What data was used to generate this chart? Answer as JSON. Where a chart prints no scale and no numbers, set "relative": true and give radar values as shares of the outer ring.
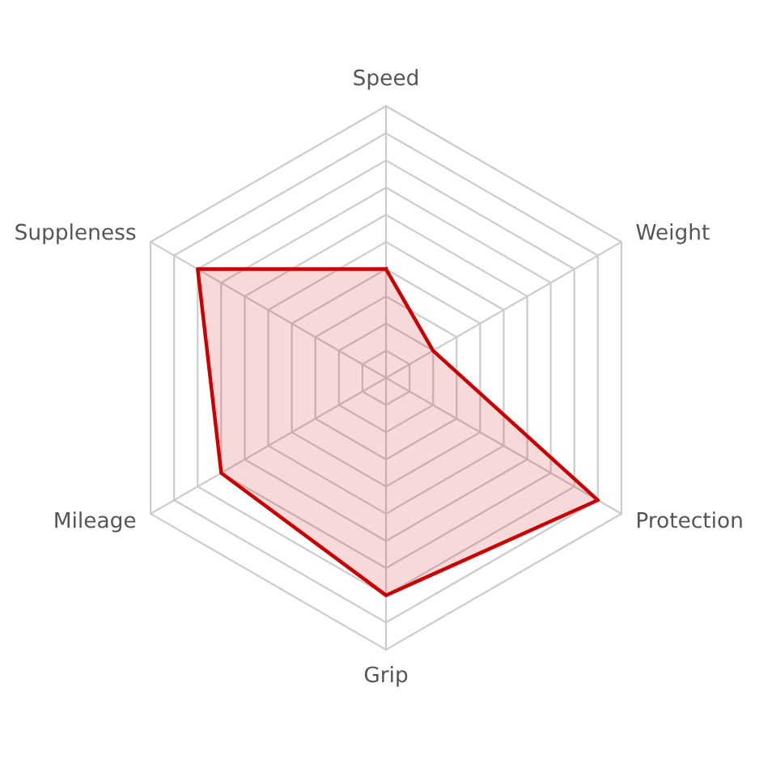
{
  "chart_data": {
    "type": "radar",
    "relative": true,
    "grid": true,
    "categories": [
      "Speed",
      "Weight",
      "Protection",
      "Grip",
      "Mileage",
      "Suppleness"
    ],
    "series": [
      {
        "color": "#cc0000",
        "values": [
          0.4,
          0.2,
          0.9,
          0.8,
          0.7,
          0.8
        ]
      }
    ]
  }
}
